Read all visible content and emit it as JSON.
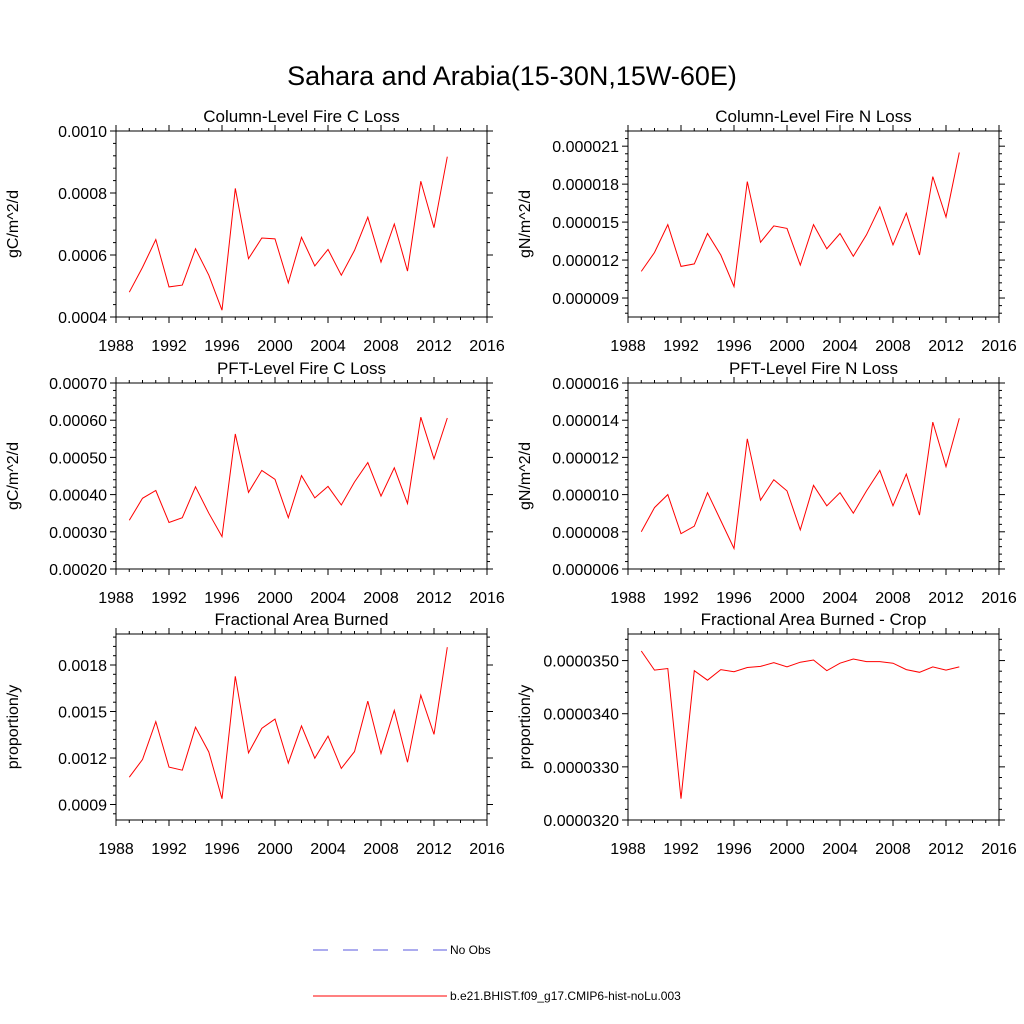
{
  "figure": {
    "title": "Sahara and Arabia(15-30N,15W-60E)",
    "line_color": "#ff0000",
    "obs_color": "#5a5adf"
  },
  "legend": {
    "obs_label": "No Obs",
    "model_label": "b.e21.BHIST.f09_g17.CMIP6-hist-noLu.003",
    "placement": "bottom-center"
  },
  "chart_data": [
    {
      "type": "line",
      "title": "Column-Level Fire C Loss",
      "ylabel": "gC/m^2/d",
      "xlim": [
        1988,
        2016
      ],
      "ylim": [
        0.0004,
        0.001
      ],
      "xticks": [
        "1988",
        "1992",
        "1996",
        "2000",
        "2004",
        "2008",
        "2012",
        "2016"
      ],
      "yticks": [
        "0.0004",
        "0.0006",
        "0.0008",
        "0.0010"
      ],
      "ytick_values": [
        0.0004,
        0.0006,
        0.0008,
        0.001
      ],
      "series": [
        {
          "x": [
            1989,
            1990,
            1991,
            1992,
            1993,
            1994,
            1995,
            1996,
            1997,
            1998,
            1999,
            2000,
            2001,
            2002,
            2003,
            2004,
            2005,
            2006,
            2007,
            2008,
            2009,
            2010,
            2011,
            2012,
            2013
          ],
          "values": [
            0.00048,
            0.00056,
            0.00065,
            0.000497,
            0.000503,
            0.00062,
            0.000535,
            0.000422,
            0.000815,
            0.000588,
            0.000655,
            0.000652,
            0.00051,
            0.000657,
            0.000565,
            0.000618,
            0.000535,
            0.000615,
            0.000722,
            0.000577,
            0.0007,
            0.000548,
            0.000838,
            0.000688,
            0.000917
          ]
        }
      ]
    },
    {
      "type": "line",
      "title": "Column-Level Fire N Loss",
      "ylabel": "gN/m^2/d",
      "xlim": [
        1988,
        2016
      ],
      "ylim": [
        7.5e-06,
        2.22e-05
      ],
      "xticks": [
        "1988",
        "1992",
        "1996",
        "2000",
        "2004",
        "2008",
        "2012",
        "2016"
      ],
      "yticks": [
        "0.000009",
        "0.000012",
        "0.000015",
        "0.000018",
        "0.000021"
      ],
      "ytick_values": [
        9e-06,
        1.2e-05,
        1.5e-05,
        1.8e-05,
        2.1e-05
      ],
      "series": [
        {
          "x": [
            1989,
            1990,
            1991,
            1992,
            1993,
            1994,
            1995,
            1996,
            1997,
            1998,
            1999,
            2000,
            2001,
            2002,
            2003,
            2004,
            2005,
            2006,
            2007,
            2008,
            2009,
            2010,
            2011,
            2012,
            2013
          ],
          "values": [
            1.11e-05,
            1.26e-05,
            1.48e-05,
            1.15e-05,
            1.17e-05,
            1.41e-05,
            1.24e-05,
            9.9e-06,
            1.82e-05,
            1.34e-05,
            1.47e-05,
            1.45e-05,
            1.16e-05,
            1.48e-05,
            1.29e-05,
            1.41e-05,
            1.23e-05,
            1.4e-05,
            1.62e-05,
            1.32e-05,
            1.57e-05,
            1.24e-05,
            1.86e-05,
            1.54e-05,
            2.05e-05
          ]
        }
      ]
    },
    {
      "type": "line",
      "title": "PFT-Level Fire C Loss",
      "ylabel": "gC/m^2/d",
      "xlim": [
        1988,
        2016
      ],
      "ylim": [
        0.0002,
        0.0007
      ],
      "xticks": [
        "1988",
        "1992",
        "1996",
        "2000",
        "2004",
        "2008",
        "2012",
        "2016"
      ],
      "yticks": [
        "0.00020",
        "0.00030",
        "0.00040",
        "0.00050",
        "0.00060",
        "0.00070"
      ],
      "ytick_values": [
        0.0002,
        0.0003,
        0.0004,
        0.0005,
        0.0006,
        0.0007
      ],
      "series": [
        {
          "x": [
            1989,
            1990,
            1991,
            1992,
            1993,
            1994,
            1995,
            1996,
            1997,
            1998,
            1999,
            2000,
            2001,
            2002,
            2003,
            2004,
            2005,
            2006,
            2007,
            2008,
            2009,
            2010,
            2011,
            2012,
            2013
          ],
          "values": [
            0.000331,
            0.00039,
            0.000411,
            0.000325,
            0.000338,
            0.000421,
            0.00035,
            0.000287,
            0.000563,
            0.000406,
            0.000465,
            0.000441,
            0.000338,
            0.000451,
            0.000391,
            0.000422,
            0.000372,
            0.000434,
            0.000486,
            0.000396,
            0.000472,
            0.000376,
            0.000608,
            0.000496,
            0.000606
          ]
        }
      ]
    },
    {
      "type": "line",
      "title": "PFT-Level Fire N Loss",
      "ylabel": "gN/m^2/d",
      "xlim": [
        1988,
        2016
      ],
      "ylim": [
        6e-06,
        1.6e-05
      ],
      "xticks": [
        "1988",
        "1992",
        "1996",
        "2000",
        "2004",
        "2008",
        "2012",
        "2016"
      ],
      "yticks": [
        "0.000006",
        "0.000008",
        "0.000010",
        "0.000012",
        "0.000014",
        "0.000016"
      ],
      "ytick_values": [
        6e-06,
        8e-06,
        1e-05,
        1.2e-05,
        1.4e-05,
        1.6e-05
      ],
      "series": [
        {
          "x": [
            1989,
            1990,
            1991,
            1992,
            1993,
            1994,
            1995,
            1996,
            1997,
            1998,
            1999,
            2000,
            2001,
            2002,
            2003,
            2004,
            2005,
            2006,
            2007,
            2008,
            2009,
            2010,
            2011,
            2012,
            2013
          ],
          "values": [
            8e-06,
            9.3e-06,
            1e-05,
            7.9e-06,
            8.3e-06,
            1.01e-05,
            8.6e-06,
            7.1e-06,
            1.3e-05,
            9.7e-06,
            1.08e-05,
            1.02e-05,
            8.1e-06,
            1.05e-05,
            9.4e-06,
            1.01e-05,
            9e-06,
            1.02e-05,
            1.13e-05,
            9.4e-06,
            1.11e-05,
            8.9e-06,
            1.39e-05,
            1.15e-05,
            1.41e-05
          ]
        }
      ]
    },
    {
      "type": "line",
      "title": "Fractional Area Burned",
      "ylabel": "proportion/y",
      "xlim": [
        1988,
        2016
      ],
      "ylim": [
        0.0008,
        0.002
      ],
      "xticks": [
        "1988",
        "1992",
        "1996",
        "2000",
        "2004",
        "2008",
        "2012",
        "2016"
      ],
      "yticks": [
        "0.0009",
        "0.0012",
        "0.0015",
        "0.0018"
      ],
      "ytick_values": [
        0.0009,
        0.0012,
        0.0015,
        0.0018
      ],
      "series": [
        {
          "x": [
            1989,
            1990,
            1991,
            1992,
            1993,
            1994,
            1995,
            1996,
            1997,
            1998,
            1999,
            2000,
            2001,
            2002,
            2003,
            2004,
            2005,
            2006,
            2007,
            2008,
            2009,
            2010,
            2011,
            2012,
            2013
          ],
          "values": [
            0.001076,
            0.00119,
            0.001435,
            0.001141,
            0.001121,
            0.001399,
            0.001239,
            0.000937,
            0.001727,
            0.001233,
            0.001391,
            0.001451,
            0.001167,
            0.001407,
            0.001199,
            0.001341,
            0.001133,
            0.001241,
            0.001567,
            0.001229,
            0.001507,
            0.001172,
            0.001605,
            0.001352,
            0.001915
          ]
        }
      ]
    },
    {
      "type": "line",
      "title": "Fractional Area Burned - Crop",
      "ylabel": "proportion/y",
      "xlim": [
        1988,
        2016
      ],
      "ylim": [
        3.2e-05,
        3.55e-05
      ],
      "xticks": [
        "1988",
        "1992",
        "1996",
        "2000",
        "2004",
        "2008",
        "2012",
        "2016"
      ],
      "yticks": [
        "0.0000320",
        "0.0000330",
        "0.0000340",
        "0.0000350"
      ],
      "ytick_values": [
        3.2e-05,
        3.3e-05,
        3.4e-05,
        3.5e-05
      ],
      "series": [
        {
          "x": [
            1989,
            1990,
            1991,
            1992,
            1993,
            1994,
            1995,
            1996,
            1997,
            1998,
            1999,
            2000,
            2001,
            2002,
            2003,
            2004,
            2005,
            2006,
            2007,
            2008,
            2009,
            2010,
            2011,
            2012,
            2013
          ],
          "values": [
            3.518e-05,
            3.482e-05,
            3.485e-05,
            3.24e-05,
            3.481e-05,
            3.463e-05,
            3.483e-05,
            3.479e-05,
            3.487e-05,
            3.489e-05,
            3.496e-05,
            3.488e-05,
            3.497e-05,
            3.501e-05,
            3.481e-05,
            3.495e-05,
            3.503e-05,
            3.498e-05,
            3.498e-05,
            3.495e-05,
            3.483e-05,
            3.478e-05,
            3.488e-05,
            3.482e-05,
            3.488e-05
          ]
        }
      ]
    }
  ]
}
